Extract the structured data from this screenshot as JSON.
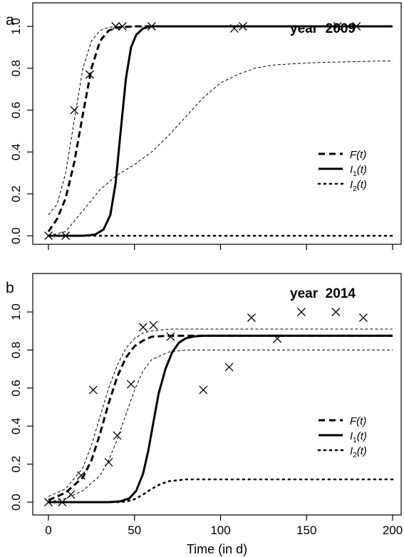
{
  "chart_data": [
    {
      "type": "line",
      "panel_label": "a",
      "title": "year  2009",
      "xlim": [
        0,
        200
      ],
      "ylim": [
        0,
        1.0
      ],
      "x_ticks": [
        0,
        50,
        100,
        150,
        200
      ],
      "y_ticks": [
        0.0,
        0.2,
        0.4,
        0.6,
        0.8,
        1.0
      ],
      "y_tick_labels": [
        "0.0",
        "0.2",
        "0.4",
        "0.6",
        "0.8",
        "1.0"
      ],
      "grid": false,
      "legend_placement": "right-middle",
      "legend": [
        {
          "base": "F",
          "sub": "",
          "arg": "(t)",
          "style": "dashed"
        },
        {
          "base": "I",
          "sub": "1",
          "arg": "(t)",
          "style": "solid"
        },
        {
          "base": "I",
          "sub": "2",
          "arg": "(t)",
          "style": "dotted"
        }
      ],
      "series": [
        {
          "name": "F(t)",
          "style": "dashed",
          "x": [
            0,
            5,
            10,
            15,
            20,
            25,
            30,
            35,
            40,
            50,
            60,
            100,
            150,
            200
          ],
          "values": [
            0.02,
            0.08,
            0.18,
            0.35,
            0.58,
            0.8,
            0.93,
            0.98,
            0.995,
            1.0,
            1.0,
            1.0,
            1.0,
            1.0
          ]
        },
        {
          "name": "I1(t)",
          "style": "solid",
          "x": [
            0,
            20,
            27,
            32,
            36,
            39,
            42,
            45,
            48,
            51,
            55,
            60,
            70,
            100,
            150,
            200
          ],
          "values": [
            0.0,
            0.0,
            0.005,
            0.03,
            0.1,
            0.25,
            0.5,
            0.75,
            0.9,
            0.96,
            0.99,
            1.0,
            1.0,
            1.0,
            1.0,
            1.0
          ]
        },
        {
          "name": "I2(t)",
          "style": "dotted",
          "x": [
            0,
            50,
            100,
            150,
            200
          ],
          "values": [
            0.0,
            0.0,
            0.0,
            0.0,
            0.0
          ]
        },
        {
          "name": "F upper band",
          "style": "thin-dashed",
          "x": [
            0,
            5,
            10,
            15,
            20,
            25,
            30,
            35,
            40,
            45,
            50,
            200
          ],
          "values": [
            0.1,
            0.15,
            0.3,
            0.55,
            0.8,
            0.93,
            0.98,
            0.995,
            1.0,
            1.0,
            1.0,
            1.0
          ]
        },
        {
          "name": "I1 lower band",
          "style": "thin-dashed",
          "x": [
            0,
            10,
            20,
            30,
            40,
            50,
            60,
            70,
            80,
            90,
            100,
            110,
            120,
            130,
            140,
            150,
            160,
            170,
            180,
            190,
            200
          ],
          "values": [
            0.0,
            0.02,
            0.12,
            0.22,
            0.29,
            0.34,
            0.4,
            0.48,
            0.57,
            0.66,
            0.73,
            0.77,
            0.8,
            0.815,
            0.82,
            0.825,
            0.828,
            0.83,
            0.832,
            0.834,
            0.835
          ]
        }
      ],
      "observations": {
        "x": [
          0,
          10,
          15,
          24,
          39,
          43,
          60,
          108,
          113,
          168,
          179
        ],
        "y": [
          0.0,
          0.0,
          0.6,
          0.77,
          1.0,
          1.0,
          1.0,
          0.99,
          1.0,
          1.0,
          1.0
        ]
      }
    },
    {
      "type": "line",
      "panel_label": "b",
      "title": "year  2014",
      "xlabel": "Time (in d)",
      "xlim": [
        0,
        200
      ],
      "ylim": [
        0,
        1.0
      ],
      "x_ticks": [
        0,
        50,
        100,
        150,
        200
      ],
      "x_tick_labels": [
        "0",
        "50",
        "100",
        "150",
        "200"
      ],
      "y_ticks": [
        0.0,
        0.2,
        0.4,
        0.6,
        0.8,
        1.0
      ],
      "y_tick_labels": [
        "0.0",
        "0.2",
        "0.4",
        "0.6",
        "0.8",
        "1.0"
      ],
      "grid": false,
      "legend_placement": "right-middle",
      "legend": [
        {
          "base": "F",
          "sub": "",
          "arg": "(t)",
          "style": "dashed"
        },
        {
          "base": "I",
          "sub": "1",
          "arg": "(t)",
          "style": "solid"
        },
        {
          "base": "I",
          "sub": "2",
          "arg": "(t)",
          "style": "dotted"
        }
      ],
      "series": [
        {
          "name": "F(t)",
          "style": "dashed",
          "x": [
            0,
            10,
            20,
            25,
            30,
            35,
            40,
            45,
            50,
            55,
            60,
            70,
            80,
            200
          ],
          "values": [
            0.01,
            0.05,
            0.13,
            0.22,
            0.36,
            0.52,
            0.66,
            0.76,
            0.82,
            0.85,
            0.87,
            0.875,
            0.875,
            0.875
          ]
        },
        {
          "name": "I1(t)",
          "style": "solid",
          "x": [
            0,
            35,
            42,
            47,
            51,
            55,
            58,
            61,
            64,
            68,
            72,
            76,
            80,
            85,
            90,
            100,
            200
          ],
          "values": [
            0.0,
            0.0,
            0.005,
            0.02,
            0.06,
            0.15,
            0.27,
            0.42,
            0.57,
            0.7,
            0.79,
            0.84,
            0.862,
            0.872,
            0.875,
            0.875,
            0.875
          ]
        },
        {
          "name": "I2(t)",
          "style": "dotted",
          "x": [
            0,
            40,
            45,
            50,
            55,
            60,
            65,
            70,
            80,
            100,
            200
          ],
          "values": [
            0.0,
            0.0,
            0.003,
            0.015,
            0.04,
            0.07,
            0.095,
            0.11,
            0.12,
            0.12,
            0.12
          ]
        },
        {
          "name": "F upper band",
          "style": "thin-dashed",
          "x": [
            0,
            10,
            20,
            25,
            30,
            35,
            40,
            45,
            50,
            55,
            60,
            70,
            80,
            200
          ],
          "values": [
            0.03,
            0.07,
            0.18,
            0.3,
            0.45,
            0.6,
            0.72,
            0.81,
            0.86,
            0.89,
            0.9,
            0.91,
            0.91,
            0.91
          ]
        },
        {
          "name": "F lower band",
          "style": "thin-dashed",
          "x": [
            0,
            10,
            20,
            30,
            35,
            40,
            45,
            50,
            55,
            60,
            70,
            80,
            200
          ],
          "values": [
            0.0,
            0.02,
            0.06,
            0.14,
            0.22,
            0.33,
            0.46,
            0.59,
            0.69,
            0.75,
            0.79,
            0.8,
            0.8
          ]
        }
      ],
      "observations": {
        "x": [
          0,
          8,
          13,
          19,
          26,
          35,
          40,
          48,
          55,
          61,
          71,
          90,
          105,
          118,
          133,
          147,
          167,
          183
        ],
        "y": [
          0.0,
          0.0,
          0.04,
          0.14,
          0.59,
          0.21,
          0.35,
          0.62,
          0.92,
          0.93,
          0.87,
          0.59,
          0.71,
          0.97,
          0.86,
          1.0,
          1.0,
          0.97
        ]
      }
    }
  ]
}
